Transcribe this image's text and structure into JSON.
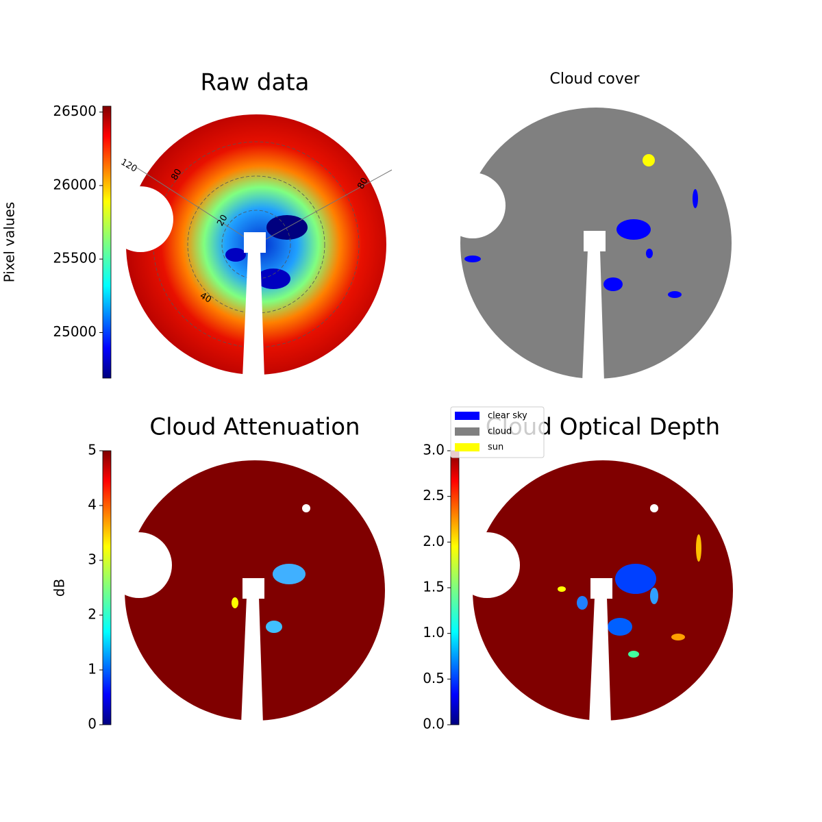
{
  "chart_data": [
    {
      "type": "image",
      "title": "Raw data",
      "colorbar": {
        "label": "Pixel values",
        "lim": [
          24690,
          26540
        ],
        "ticks": [
          25000,
          25500,
          26000,
          26500
        ]
      },
      "grid_labels": [
        "120",
        "80",
        "80",
        "20",
        "40"
      ]
    },
    {
      "type": "image",
      "title": "Cloud cover",
      "legend": [
        {
          "name": "clear sky",
          "color": "#0000ff"
        },
        {
          "name": "cloud",
          "color": "#808080"
        },
        {
          "name": "sun",
          "color": "#ffff00"
        }
      ]
    },
    {
      "type": "image",
      "title": "Cloud Attenuation",
      "colorbar": {
        "label": "dB",
        "lim": [
          0,
          5
        ],
        "ticks": [
          0,
          1,
          2,
          3,
          4,
          5
        ]
      }
    },
    {
      "type": "image",
      "title": "Cloud Optical Depth",
      "colorbar": {
        "lim": [
          0,
          3
        ],
        "ticks": [
          {
            "value": 0,
            "label": "0.0"
          },
          {
            "value": 0.5,
            "label": "0.5"
          },
          {
            "value": 1,
            "label": "1.0"
          },
          {
            "value": 1.5,
            "label": "1.5"
          },
          {
            "value": 2,
            "label": "2.0"
          },
          {
            "value": 2.5,
            "label": "2.5"
          },
          {
            "value": 3,
            "label": "3.0"
          }
        ]
      }
    }
  ]
}
